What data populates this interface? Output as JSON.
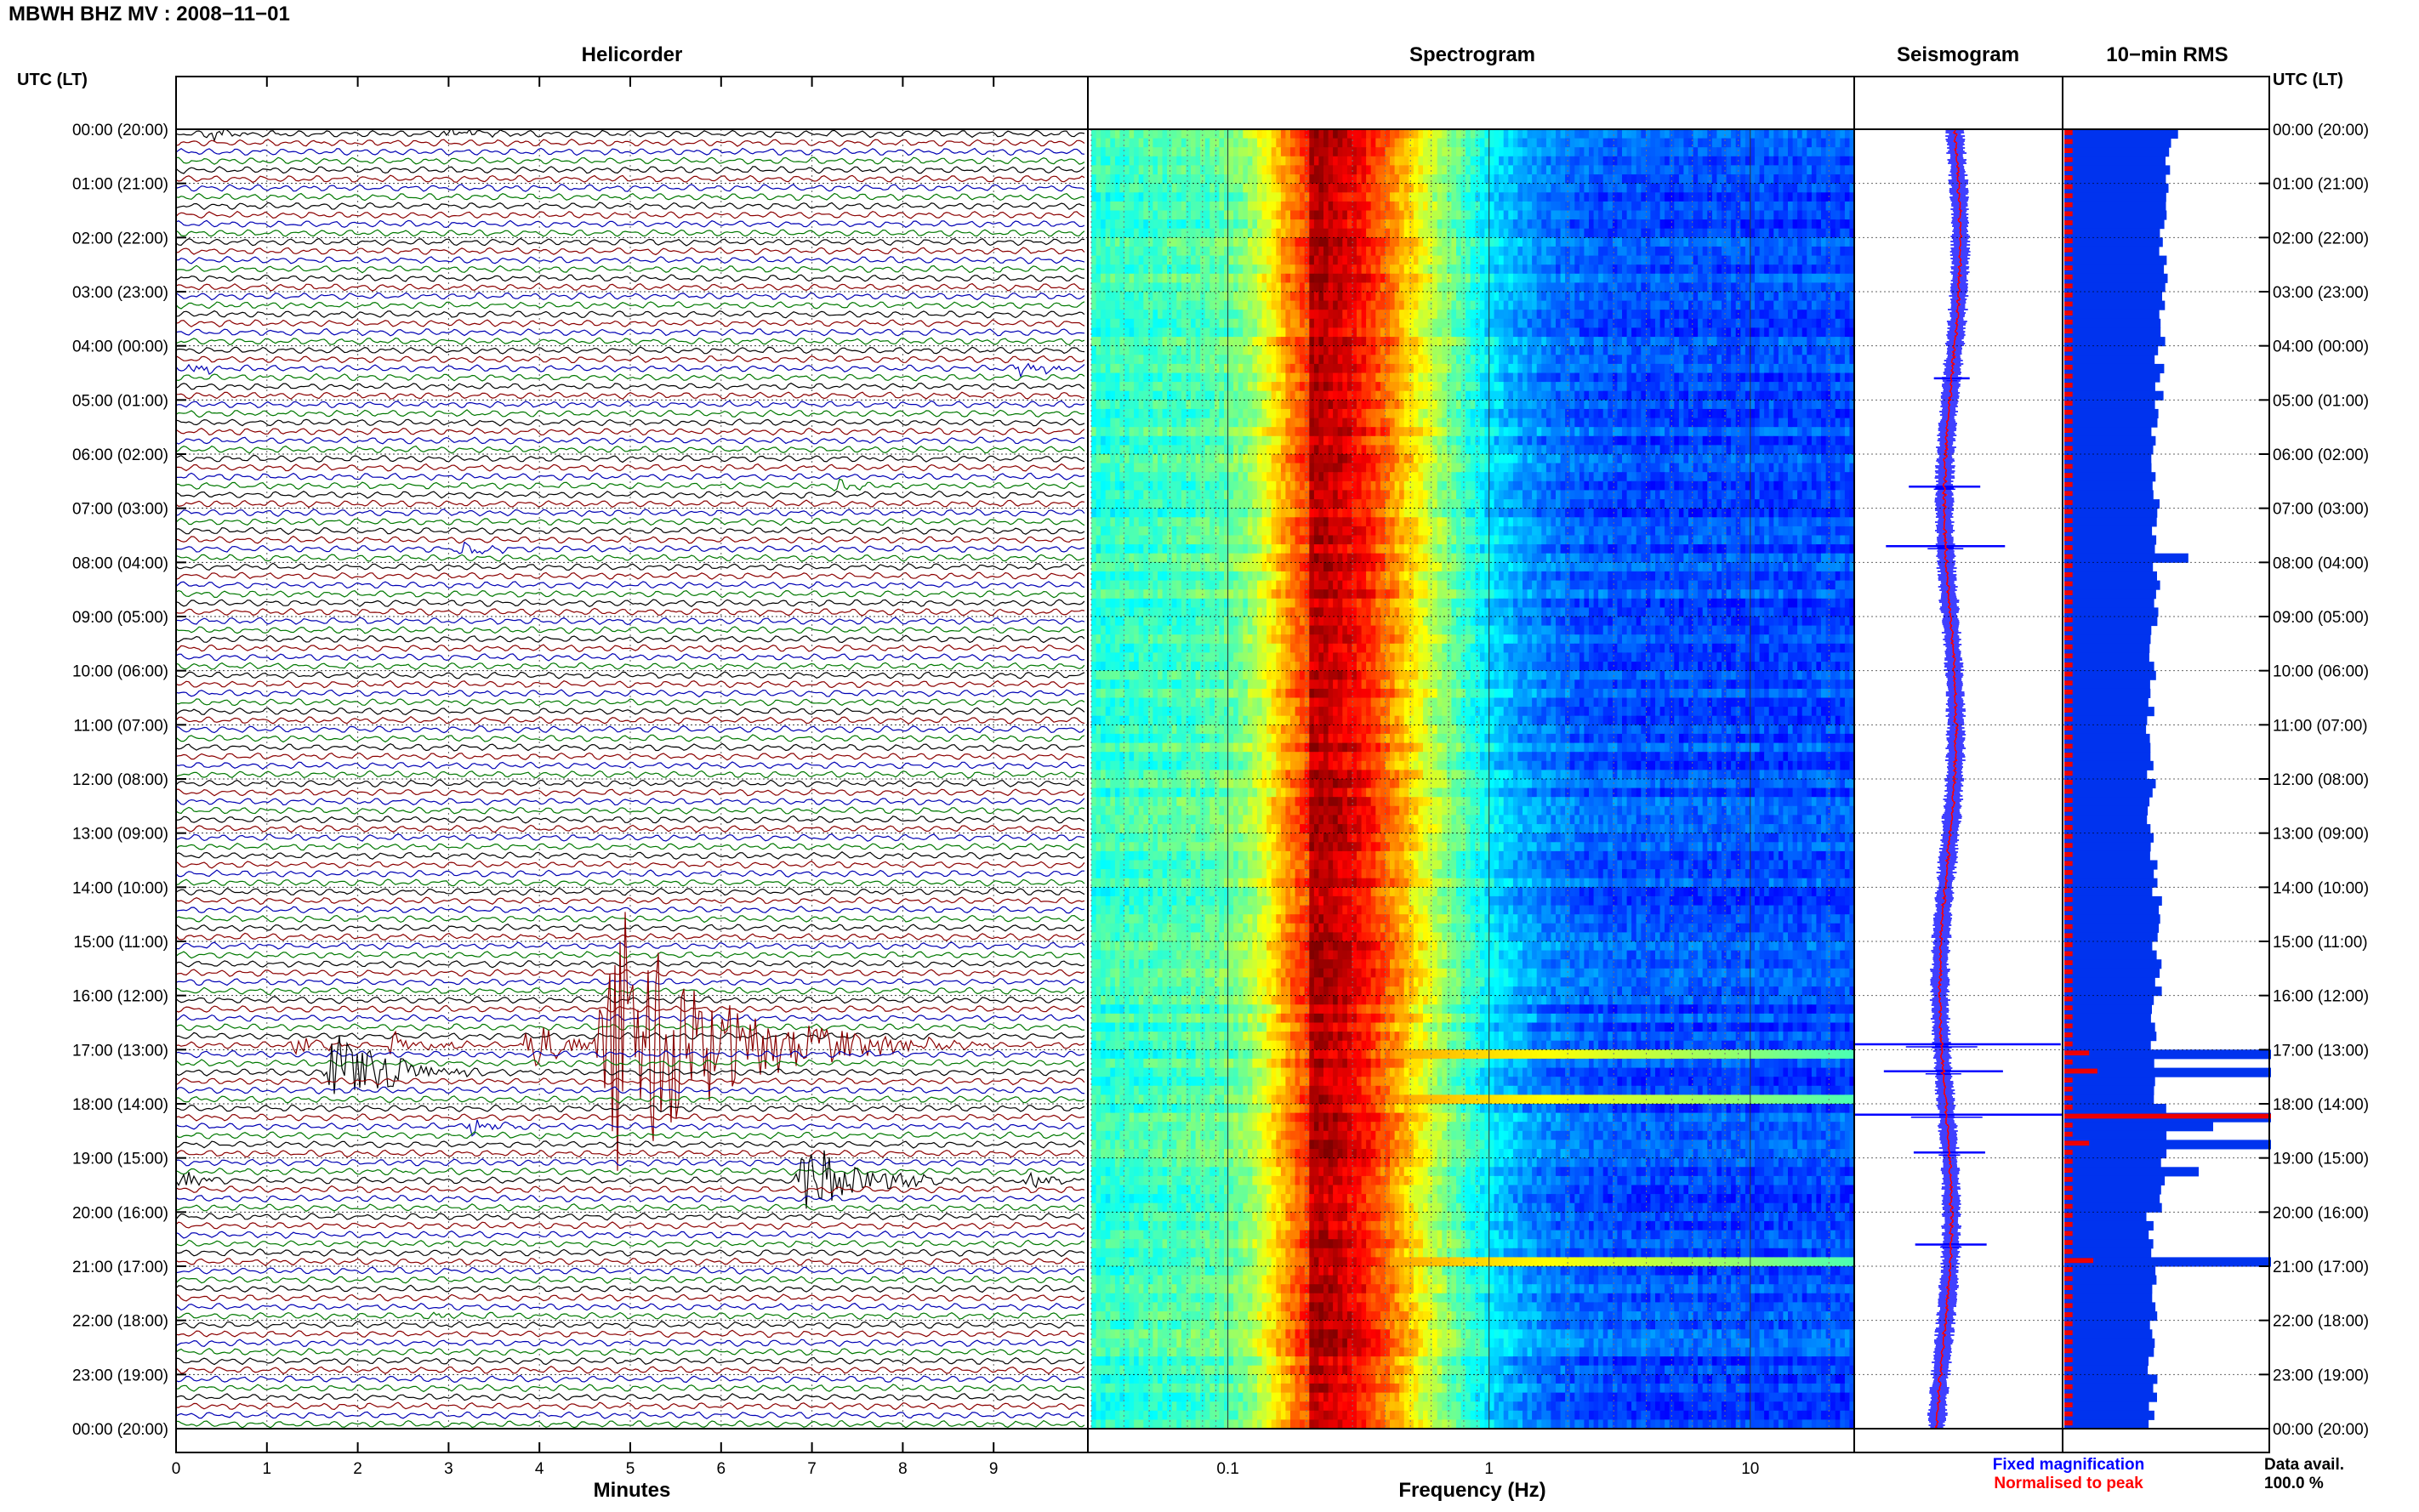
{
  "header": {
    "title": "MBWH BHZ MV : 2008−11−01"
  },
  "left_axis_title": "UTC (LT)",
  "right_axis_title": "UTC (LT)",
  "panels": {
    "helicorder": "Helicorder",
    "spectrogram": "Spectrogram",
    "seismogram": "Seismogram",
    "rms": "10−min RMS"
  },
  "helicorder_xlabel": "Minutes",
  "spectrogram_xlabel": "Frequency (Hz)",
  "legend": {
    "fixed": "Fixed magnification",
    "normalised": "Normalised to peak"
  },
  "data_avail": {
    "label": "Data avail.",
    "value": "100.0 %"
  },
  "colors": {
    "trace_cycle": [
      "#000000",
      "#8b0000",
      "#0000b4",
      "#007800"
    ],
    "seismogram_fixed": "#0000ff",
    "seismogram_peak": "#ff0000",
    "rms_fill": "#0033ee",
    "rms_marker": "#ee0000",
    "spectrogram_low": "#00ccee",
    "spectrogram_peak": "#ff9900",
    "spectrogram_high": "#0022cc"
  },
  "chart_data": [
    {
      "type": "line",
      "name": "Helicorder",
      "xlabel": "Minutes",
      "xlim": [
        0,
        10
      ],
      "x_ticks": [
        "0",
        "1",
        "2",
        "3",
        "4",
        "5",
        "6",
        "7",
        "8",
        "9"
      ],
      "y_ticks": [
        "00:00 (20:00)",
        "01:00 (21:00)",
        "02:00 (22:00)",
        "03:00 (23:00)",
        "04:00 (00:00)",
        "05:00 (01:00)",
        "06:00 (02:00)",
        "07:00 (03:00)",
        "08:00 (04:00)",
        "09:00 (05:00)",
        "10:00 (06:00)",
        "11:00 (07:00)",
        "12:00 (08:00)",
        "13:00 (09:00)",
        "14:00 (10:00)",
        "15:00 (11:00)",
        "16:00 (12:00)",
        "17:00 (13:00)",
        "18:00 (14:00)",
        "19:00 (15:00)",
        "20:00 (16:00)",
        "21:00 (17:00)",
        "22:00 (18:00)",
        "23:00 (19:00)",
        "00:00 (20:00)"
      ],
      "rows_per_hour": 6,
      "row_minutes": 10,
      "events": [
        {
          "row": 0,
          "minute": 0.3,
          "amp": 0.9,
          "dur": 1.0
        },
        {
          "row": 0,
          "minute": 2.9,
          "amp": 1.4,
          "dur": 0.9
        },
        {
          "row": 26,
          "minute": 0.1,
          "amp": 0.6,
          "dur": 0.9
        },
        {
          "row": 26,
          "minute": 9.2,
          "amp": 0.9,
          "dur": 1.0
        },
        {
          "row": 39,
          "minute": 7.2,
          "amp": 0.8,
          "dur": 0.7
        },
        {
          "row": 46,
          "minute": 3.1,
          "amp": 1.2,
          "dur": 0.8
        },
        {
          "row": 101,
          "minute": 1.2,
          "amp": 1.5,
          "dur": 0.9
        },
        {
          "row": 101,
          "minute": 2.3,
          "amp": 1.9,
          "dur": 1.0
        },
        {
          "row": 101,
          "minute": 3.8,
          "amp": 3.0,
          "dur": 1.2
        },
        {
          "row": 101,
          "minute": 4.6,
          "amp": 16.0,
          "dur": 3.5
        },
        {
          "row": 101,
          "minute": 6.1,
          "amp": 1.3,
          "dur": 1.5
        },
        {
          "row": 101,
          "minute": 8.2,
          "amp": 0.9,
          "dur": 0.9
        },
        {
          "row": 104,
          "minute": 1.6,
          "amp": 5.0,
          "dur": 1.8
        },
        {
          "row": 110,
          "minute": 3.2,
          "amp": 1.2,
          "dur": 0.8
        },
        {
          "row": 116,
          "minute": 6.8,
          "amp": 4.5,
          "dur": 1.8
        },
        {
          "row": 116,
          "minute": 0.0,
          "amp": 0.9,
          "dur": 0.8
        },
        {
          "row": 116,
          "minute": 9.3,
          "amp": 0.9,
          "dur": 0.8
        },
        {
          "row": 131,
          "minute": 2.8,
          "amp": 0.6,
          "dur": 0.6
        }
      ]
    },
    {
      "type": "heatmap",
      "name": "Spectrogram",
      "xlabel": "Frequency (Hz)",
      "x_scale": "log",
      "xlim": [
        0.03,
        25
      ],
      "x_ticks": [
        "0.1",
        "1",
        "10"
      ],
      "dominant_frequency_hz": 0.21,
      "events_at_hours": [
        17.0,
        17.9,
        20.9
      ],
      "bins_per_decade": 55,
      "rows": 144
    },
    {
      "type": "line",
      "name": "Seismogram",
      "series": [
        {
          "name": "Fixed magnification",
          "color": "#0000ff"
        },
        {
          "name": "Normalised to peak",
          "color": "#ff0000"
        }
      ],
      "spikes": [
        {
          "hour": 16.9,
          "amp": 1.0
        },
        {
          "hour": 17.4,
          "amp": 0.5
        },
        {
          "hour": 18.2,
          "amp": 1.0
        },
        {
          "hour": 18.9,
          "amp": 0.3
        },
        {
          "hour": 20.6,
          "amp": 0.3
        },
        {
          "hour": 7.7,
          "amp": 0.5
        },
        {
          "hour": 6.6,
          "amp": 0.3
        },
        {
          "hour": 4.6,
          "amp": 0.15
        }
      ]
    },
    {
      "type": "bar",
      "name": "10-min RMS",
      "orientation": "horizontal",
      "hourly_level": [
        0.5,
        0.48,
        0.48,
        0.47,
        0.46,
        0.44,
        0.44,
        0.43,
        0.45,
        0.43,
        0.42,
        0.42,
        0.42,
        0.44,
        0.45,
        0.45,
        0.44,
        0.45,
        0.48,
        0.47,
        0.42,
        0.44,
        0.42,
        0.43,
        0.43
      ],
      "peaks": [
        {
          "hour": 0.0,
          "value": 0.55
        },
        {
          "hour": 7.8,
          "value": 0.6
        },
        {
          "hour": 17.0,
          "value": 1.0
        },
        {
          "hour": 17.4,
          "value": 1.0
        },
        {
          "hour": 18.2,
          "value": 1.0
        },
        {
          "hour": 18.35,
          "value": 0.72
        },
        {
          "hour": 18.7,
          "value": 1.0
        },
        {
          "hour": 19.1,
          "value": 0.65
        },
        {
          "hour": 20.8,
          "value": 1.0
        }
      ],
      "red_marker_level": 0.04,
      "red_peaks": [
        {
          "hour": 17.0,
          "value": 0.12
        },
        {
          "hour": 17.4,
          "value": 0.16
        },
        {
          "hour": 18.2,
          "value": 1.0
        },
        {
          "hour": 18.7,
          "value": 0.12
        },
        {
          "hour": 20.8,
          "value": 0.14
        }
      ]
    }
  ]
}
